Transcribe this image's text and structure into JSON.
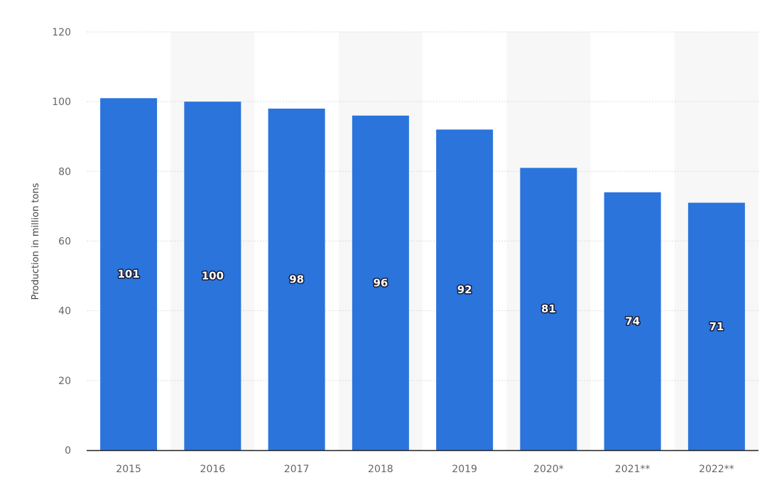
{
  "chart_data": {
    "type": "bar",
    "title": "",
    "xlabel": "",
    "ylabel": "Production in million tons",
    "categories": [
      "2015",
      "2016",
      "2017",
      "2018",
      "2019",
      "2020*",
      "2021**",
      "2022**"
    ],
    "values": [
      101,
      100,
      98,
      96,
      92,
      81,
      74,
      71
    ],
    "data_labels": [
      "101",
      "100",
      "98",
      "96",
      "92",
      "81",
      "74",
      "71"
    ],
    "ylim": [
      0,
      120
    ],
    "yticks": [
      0,
      20,
      40,
      60,
      80,
      100,
      120
    ],
    "ytick_labels": [
      "0",
      "20",
      "40",
      "60",
      "80",
      "100",
      "120"
    ],
    "grid": true,
    "legend": "none",
    "colors": {
      "bar": "#2a74dc",
      "band": "#f7f7f7",
      "grid": "#dddddd",
      "axis": "#222222"
    }
  }
}
